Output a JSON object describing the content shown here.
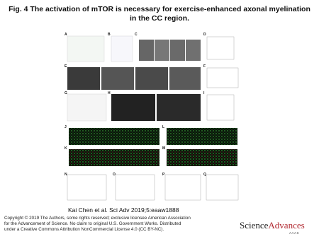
{
  "header": {
    "title": "Fig. 4 The activation of mTOR is necessary for exercise-enhanced axonal myelination in the CC region."
  },
  "figure": {
    "panels": [
      "A",
      "B",
      "C",
      "D",
      "E",
      "F",
      "G",
      "H",
      "I",
      "J",
      "L",
      "K",
      "M",
      "N",
      "O",
      "P",
      "Q"
    ]
  },
  "citation": "Kai Chen et al. Sci Adv 2019;5:eaaw1888",
  "copyright": [
    "Copyright © 2019 The Authors, some rights reserved; exclusive licensee American Association",
    "for the Advancement of Science. No claim to original U.S. Government Works. Distributed",
    "under a Creative Commons Attribution NonCommercial License 4.0 (CC BY-NC)."
  ],
  "logo": {
    "word1": "Science",
    "word2": "Advances",
    "sub": "AAAS"
  }
}
